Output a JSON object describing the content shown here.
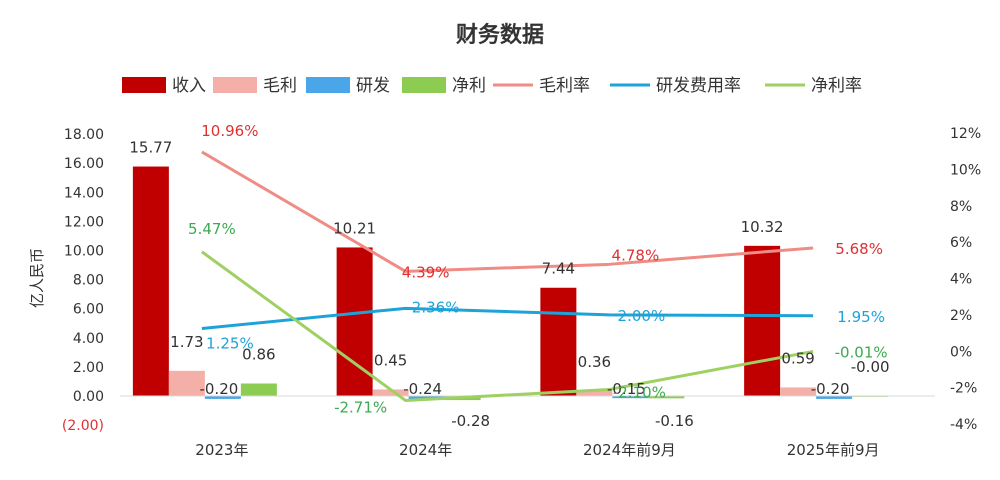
{
  "chart_data": {
    "type": "bar",
    "title": "财务数据",
    "categories": [
      "2023年",
      "2024年",
      "2024年前9月",
      "2025年前9月"
    ],
    "legend_position": "top",
    "grid": false,
    "y_left": {
      "label": "亿人民币",
      "min": -2,
      "max": 18,
      "step": 2,
      "tick_labels": [
        "(2.00)",
        "0.00",
        "2.00",
        "4.00",
        "6.00",
        "8.00",
        "10.00",
        "12.00",
        "14.00",
        "16.00",
        "18.00"
      ]
    },
    "y_right": {
      "min": -4,
      "max": 12,
      "step": 2,
      "tick_labels": [
        "-4%",
        "-2%",
        "0%",
        "2%",
        "4%",
        "6%",
        "8%",
        "10%",
        "12%"
      ]
    },
    "bar_series": [
      {
        "name": "收入",
        "color": "#c00000",
        "values": [
          15.77,
          10.21,
          7.44,
          10.32
        ],
        "labels": [
          "15.77",
          "10.21",
          "7.44",
          "10.32"
        ]
      },
      {
        "name": "毛利",
        "color": "#f4b0a8",
        "values": [
          1.73,
          0.45,
          0.36,
          0.59
        ],
        "labels": [
          "1.73",
          "0.45",
          "0.36",
          "0.59"
        ]
      },
      {
        "name": "研发",
        "color": "#4aa6e8",
        "values": [
          -0.2,
          -0.24,
          -0.15,
          -0.2
        ],
        "labels": [
          "-0.20",
          "-0.24",
          "-0.15",
          "-0.20"
        ]
      },
      {
        "name": "净利",
        "color": "#8ccc52",
        "values": [
          0.86,
          -0.28,
          -0.16,
          -0.0
        ],
        "labels": [
          "0.86",
          "-0.28",
          "-0.16",
          "-0.00"
        ]
      }
    ],
    "line_series": [
      {
        "name": "毛利率",
        "color": "#f08c86",
        "label_color": "#e03030",
        "values": [
          10.96,
          4.39,
          4.78,
          5.68
        ],
        "labels": [
          "10.96%",
          "4.39%",
          "4.78%",
          "5.68%"
        ]
      },
      {
        "name": "研发费用率",
        "color": "#1ea3d8",
        "label_color": "#1ea3d8",
        "values": [
          1.25,
          2.36,
          2.0,
          1.95
        ],
        "labels": [
          "1.25%",
          "2.36%",
          "2.00%",
          "1.95%"
        ]
      },
      {
        "name": "净利率",
        "color": "#9ed062",
        "label_color": "#3caa50",
        "values": [
          5.47,
          -2.71,
          -2.1,
          -0.01
        ],
        "labels": [
          "5.47%",
          "-2.71%",
          "-2.10%",
          "-0.01%"
        ]
      }
    ]
  }
}
